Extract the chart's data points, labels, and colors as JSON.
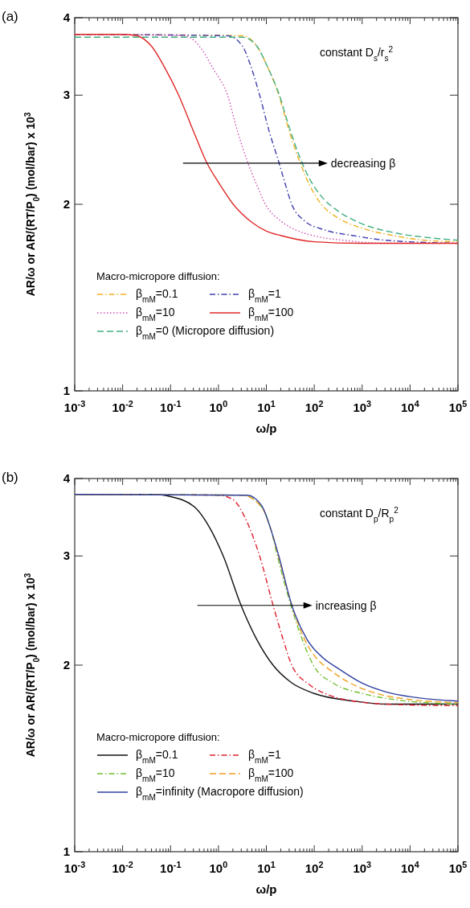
{
  "chart_data": [
    {
      "type": "line",
      "title": "(a)",
      "xlabel": "ω/p",
      "ylabel": "AR/ω or AR/(RT/P$_{0}$) (mol/bar) x 10$^{3}$",
      "legend_title": "Macro-micropore diffusion:",
      "legend": "bottom",
      "log": "xy",
      "xlim": [
        0.001,
        100000
      ],
      "ylim": [
        1,
        4
      ],
      "xticks": [
        {
          "value": 0.001,
          "label": "10$^{-3}$"
        },
        {
          "value": 0.01,
          "label": "10$^{-2}$"
        },
        {
          "value": 0.1,
          "label": "10$^{-1}$"
        },
        {
          "value": 1,
          "label": "10$^{0}$"
        },
        {
          "value": 10,
          "label": "10$^{1}$"
        },
        {
          "value": 100,
          "label": "10$^{2}$"
        },
        {
          "value": 1000,
          "label": "10$^{3}$"
        },
        {
          "value": 10000,
          "label": "10$^{4}$"
        },
        {
          "value": 100000,
          "label": "10$^{5}$"
        }
      ],
      "yticks": [
        1,
        2,
        3,
        4
      ],
      "annotations": [
        "constant D$_{s}$/r$_{s}$$^{2}$",
        "decreasing β"
      ],
      "series": [
        {
          "name": "β$_{mM}$=0.1",
          "color": "#f0b020",
          "line_style": "dashdot",
          "x": [
            0.001,
            3.16,
            6.31,
            11.2,
            18.2,
            30.2,
            50.1,
            79.4,
            141,
            316,
            1000,
            4570,
            20000,
            100000
          ],
          "values": [
            3.76,
            3.74,
            3.6,
            3.3,
            3.0,
            2.62,
            2.34,
            2.15,
            2.0,
            1.9,
            1.83,
            1.78,
            1.75,
            1.74
          ]
        },
        {
          "name": "β$_{mM}$=1",
          "color": "#4040b0",
          "line_style": "dashdot",
          "x": [
            0.001,
            1.58,
            3.16,
            5.01,
            7.24,
            11.5,
            18.2,
            25.1,
            33.9,
            63.1,
            158,
            661,
            3162,
            100000
          ],
          "values": [
            3.76,
            3.74,
            3.6,
            3.3,
            3.0,
            2.62,
            2.34,
            2.15,
            2.0,
            1.88,
            1.82,
            1.78,
            1.75,
            1.73
          ]
        },
        {
          "name": "β$_{mM}$=10",
          "color": "#d050b0",
          "line_style": "dotted",
          "x": [
            0.001,
            0.2,
            0.398,
            0.794,
            1.55,
            2.51,
            4.07,
            6.31,
            9.55,
            20,
            39.8,
            95.5,
            398,
            3162,
            100000
          ],
          "values": [
            3.76,
            3.74,
            3.6,
            3.3,
            3.0,
            2.62,
            2.34,
            2.15,
            2.0,
            1.88,
            1.82,
            1.78,
            1.75,
            1.73,
            1.73
          ]
        },
        {
          "name": "β$_{mM}$=100",
          "color": "#e02828",
          "line_style": "solid",
          "x": [
            0.001,
            0.01,
            0.02,
            0.0398,
            0.0794,
            0.145,
            0.316,
            0.562,
            1,
            2.04,
            5.01,
            10,
            20.4,
            100,
            1000,
            100000
          ],
          "values": [
            3.76,
            3.76,
            3.74,
            3.6,
            3.3,
            3.01,
            2.6,
            2.34,
            2.17,
            2.0,
            1.87,
            1.81,
            1.78,
            1.74,
            1.73,
            1.73
          ]
        },
        {
          "name": "β$_{mM}$=0 (Micropore diffusion)",
          "color": "#40b080",
          "line_style": "dashed",
          "x": [
            0.001,
            3.16,
            6.31,
            11.2,
            18.2,
            30.2,
            50.1,
            79.4,
            141,
            316,
            1000,
            4570,
            20000,
            100000
          ],
          "values": [
            3.72,
            3.72,
            3.6,
            3.3,
            3.02,
            2.66,
            2.38,
            2.2,
            2.06,
            1.95,
            1.86,
            1.8,
            1.77,
            1.75
          ]
        }
      ]
    },
    {
      "type": "line",
      "title": "(b)",
      "xlabel": "ω/p",
      "ylabel": "AR/ω or AR/(RT/P$_{0}$) (mol/bar) x 10$^{3}$",
      "legend_title": "Macro-micropore diffusion:",
      "legend": "bottom",
      "log": "xy",
      "xlim": [
        0.001,
        100000
      ],
      "ylim": [
        1,
        4
      ],
      "xticks": [
        {
          "value": 0.001,
          "label": "10$^{-3}$"
        },
        {
          "value": 0.01,
          "label": "10$^{-2}$"
        },
        {
          "value": 0.1,
          "label": "10$^{-1}$"
        },
        {
          "value": 1,
          "label": "10$^{0}$"
        },
        {
          "value": 10,
          "label": "10$^{1}$"
        },
        {
          "value": 100,
          "label": "10$^{2}$"
        },
        {
          "value": 1000,
          "label": "10$^{3}$"
        },
        {
          "value": 10000,
          "label": "10$^{4}$"
        },
        {
          "value": 100000,
          "label": "10$^{5}$"
        }
      ],
      "yticks": [
        1,
        2,
        3,
        4
      ],
      "annotations": [
        "constant D$_{p}$/R$_{p}$$^{2}$",
        "increasing β"
      ],
      "series": [
        {
          "name": "β$_{mM}$=0.1",
          "color": "#101010",
          "line_style": "solid",
          "x": [
            0.001,
            0.05,
            0.1,
            0.316,
            0.631,
            1.26,
            2.95,
            6.31,
            13.8,
            31.6,
            100,
            661,
            3162,
            100000
          ],
          "values": [
            3.77,
            3.77,
            3.74,
            3.6,
            3.35,
            3.0,
            2.5,
            2.2,
            2.0,
            1.88,
            1.8,
            1.75,
            1.73,
            1.73
          ]
        },
        {
          "name": "β$_{mM}$=1",
          "color": "#e02030",
          "line_style": "dashdot",
          "x": [
            0.001,
            1,
            2,
            3.98,
            7.24,
            13.8,
            22.4,
            33.9,
            79.4,
            200,
            661,
            3162,
            100000
          ],
          "values": [
            3.77,
            3.76,
            3.7,
            3.4,
            3.0,
            2.5,
            2.2,
            2.0,
            1.86,
            1.79,
            1.75,
            1.73,
            1.72
          ]
        },
        {
          "name": "β$_{mM}$=10",
          "color": "#70c030",
          "line_style": "dashdot",
          "x": [
            0.001,
            3.16,
            7.94,
            12.6,
            17,
            32.4,
            56.2,
            95.5,
            251,
            1000,
            4570,
            20000,
            100000
          ],
          "values": [
            3.77,
            3.76,
            3.6,
            3.3,
            3.0,
            2.5,
            2.2,
            2.0,
            1.87,
            1.8,
            1.76,
            1.74,
            1.73
          ]
        },
        {
          "name": "β$_{mM}$=100",
          "color": "#f0a020",
          "line_style": "dashed",
          "x": [
            0.001,
            3.16,
            7.94,
            12.6,
            17.8,
            33.9,
            63.1,
            126,
            186,
            501,
            2000,
            10000,
            100000
          ],
          "values": [
            3.77,
            3.76,
            3.6,
            3.3,
            3.0,
            2.5,
            2.2,
            2.03,
            1.98,
            1.88,
            1.8,
            1.76,
            1.74
          ]
        },
        {
          "name": "β$_{mM}$=infinity (Macropore diffusion)",
          "color": "#3040a0",
          "line_style": "solid",
          "x": [
            0.001,
            3.98,
            7.94,
            12.6,
            18.2,
            33.9,
            70.8,
            158,
            302,
            1000,
            3162,
            15800,
            100000
          ],
          "values": [
            3.77,
            3.76,
            3.62,
            3.3,
            3.0,
            2.5,
            2.2,
            2.05,
            1.98,
            1.87,
            1.81,
            1.77,
            1.75
          ]
        }
      ]
    }
  ]
}
